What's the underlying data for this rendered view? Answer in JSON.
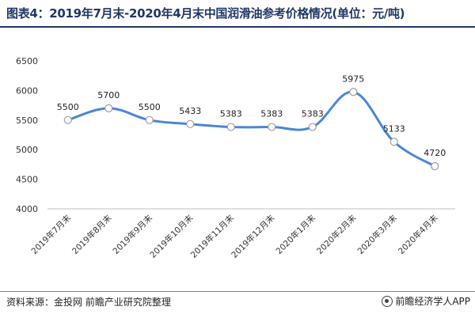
{
  "header": {
    "title": "图表4：2019年7月末-2020年4月末中国润滑油参考价格情况(单位：元/吨)"
  },
  "footer": {
    "source": "资料来源：金投网 前瞻产业研究院整理",
    "brand": "前瞻经济学人APP"
  },
  "chart_data": {
    "type": "line",
    "title": "图表4：2019年7月末-2020年4月末中国润滑油参考价格情况(单位：元/吨)",
    "categories": [
      "2019年7月末",
      "2019年8月末",
      "2019年9月末",
      "2019年10月末",
      "2019年11月末",
      "2019年12月末",
      "2020年1月末",
      "2020年2月末",
      "2020年3月末",
      "2020年4月末"
    ],
    "series": [
      {
        "values": [
          5500,
          5700,
          5500,
          5433,
          5383,
          5383,
          5383,
          5975,
          5133,
          4720
        ],
        "color": "#4a86d8"
      }
    ],
    "ylim": [
      4000,
      6500
    ],
    "yticks": [
      4000,
      4500,
      5000,
      5500,
      6000,
      6500
    ],
    "grid": false,
    "smooth": true,
    "data_labels": true,
    "xlabel": "",
    "ylabel": ""
  }
}
